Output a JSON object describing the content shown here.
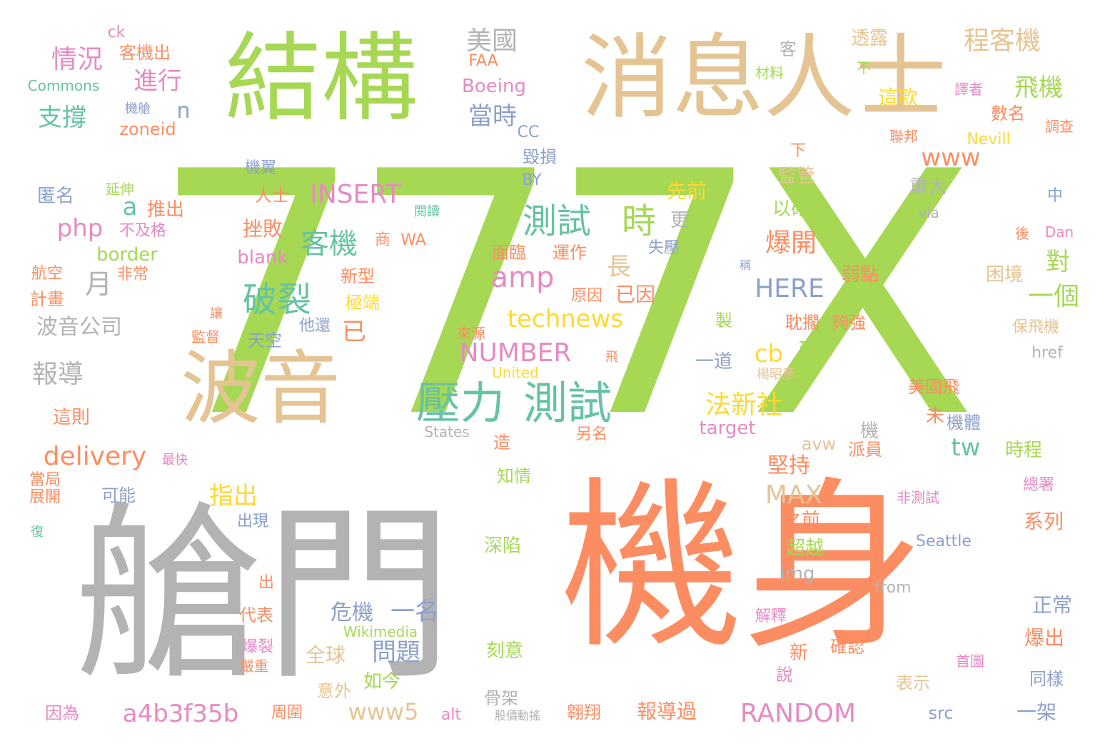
{
  "palette": {
    "green": "#a6d854",
    "tan": "#e5c494",
    "orange": "#fc8d62",
    "gray": "#b3b3b3",
    "pink": "#e78ac3",
    "blue": "#8da0cb",
    "teal": "#66c2a5",
    "yellow": "#ffd92f",
    "background": "#ffffff"
  },
  "words": [
    {
      "text": "777X",
      "color": "green"
    },
    {
      "text": "機身",
      "color": "orange"
    },
    {
      "text": "艙門",
      "color": "gray"
    },
    {
      "text": "消息人士",
      "color": "tan"
    },
    {
      "text": "結構",
      "color": "green"
    },
    {
      "text": "波音",
      "color": "tan"
    },
    {
      "text": "壓力",
      "color": "teal"
    },
    {
      "text": "測試",
      "color": "teal"
    },
    {
      "text": "測試",
      "color": "teal"
    },
    {
      "text": "時",
      "color": "green"
    },
    {
      "text": "破裂",
      "color": "teal"
    },
    {
      "text": "客機",
      "color": "teal"
    },
    {
      "text": "INSERT",
      "color": "pink"
    },
    {
      "text": "NUMBER",
      "color": "pink"
    },
    {
      "text": "RANDOM",
      "color": "pink"
    },
    {
      "text": "technews",
      "color": "yellow"
    },
    {
      "text": "amp",
      "color": "pink"
    },
    {
      "text": "delivery",
      "color": "orange"
    },
    {
      "text": "a4b3f35b",
      "color": "pink"
    },
    {
      "text": "www5",
      "color": "tan"
    },
    {
      "text": "MAX",
      "color": "tan"
    },
    {
      "text": "HERE",
      "color": "blue"
    },
    {
      "text": "法新社",
      "color": "yellow"
    },
    {
      "text": "爆開",
      "color": "orange"
    },
    {
      "text": "飛機",
      "color": "green"
    },
    {
      "text": "程客機",
      "color": "tan"
    },
    {
      "text": "www",
      "color": "orange"
    },
    {
      "text": "美國",
      "color": "gray"
    },
    {
      "text": "當時",
      "color": "blue"
    },
    {
      "text": "情況",
      "color": "pink"
    },
    {
      "text": "進行",
      "color": "pink"
    },
    {
      "text": "支撐",
      "color": "teal"
    },
    {
      "text": "php",
      "color": "pink"
    },
    {
      "text": "月",
      "color": "gray"
    },
    {
      "text": "a",
      "color": "teal"
    },
    {
      "text": "n",
      "color": "blue"
    },
    {
      "text": "一個",
      "color": "green"
    },
    {
      "text": "對",
      "color": "green"
    },
    {
      "text": "長",
      "color": "tan"
    },
    {
      "text": "已",
      "color": "orange"
    },
    {
      "text": "cb",
      "color": "yellow"
    },
    {
      "text": "tw",
      "color": "teal"
    },
    {
      "text": "指出",
      "color": "yellow"
    },
    {
      "text": "問題",
      "color": "blue"
    },
    {
      "text": "危機",
      "color": "blue"
    },
    {
      "text": "一名",
      "color": "blue"
    },
    {
      "text": "報導",
      "color": "gray"
    },
    {
      "text": "波音公司",
      "color": "gray"
    },
    {
      "text": "客機出",
      "color": "orange"
    },
    {
      "text": "ck",
      "color": "pink"
    },
    {
      "text": "Commons",
      "color": "teal"
    },
    {
      "text": "機艙",
      "color": "blue"
    },
    {
      "text": "zoneid",
      "color": "orange"
    },
    {
      "text": "FAA",
      "color": "orange"
    },
    {
      "text": "Boeing",
      "color": "pink"
    },
    {
      "text": "CC",
      "color": "blue"
    },
    {
      "text": "BY",
      "color": "blue"
    },
    {
      "text": "毀損",
      "color": "blue"
    },
    {
      "text": "機翼",
      "color": "blue"
    },
    {
      "text": "延伸",
      "color": "green"
    },
    {
      "text": "匿名",
      "color": "blue"
    },
    {
      "text": "推出",
      "color": "orange"
    },
    {
      "text": "人士",
      "color": "orange"
    },
    {
      "text": "閱讀",
      "color": "teal"
    },
    {
      "text": "不及格",
      "color": "pink"
    },
    {
      "text": "挫敗",
      "color": "orange"
    },
    {
      "text": "border",
      "color": "green"
    },
    {
      "text": "blank",
      "color": "pink"
    },
    {
      "text": "商",
      "color": "orange"
    },
    {
      "text": "WA",
      "color": "orange"
    },
    {
      "text": "面臨",
      "color": "orange"
    },
    {
      "text": "運作",
      "color": "orange"
    },
    {
      "text": "先前",
      "color": "yellow"
    },
    {
      "text": "更",
      "color": "gray"
    },
    {
      "text": "失壓",
      "color": "blue"
    },
    {
      "text": "航空",
      "color": "orange"
    },
    {
      "text": "非常",
      "color": "orange"
    },
    {
      "text": "計畫",
      "color": "orange"
    },
    {
      "text": "新型",
      "color": "orange"
    },
    {
      "text": "極端",
      "color": "yellow"
    },
    {
      "text": "原因",
      "color": "orange"
    },
    {
      "text": "已因",
      "color": "orange"
    },
    {
      "text": "天空",
      "color": "blue"
    },
    {
      "text": "他還",
      "color": "blue"
    },
    {
      "text": "讓",
      "color": "orange"
    },
    {
      "text": "監督",
      "color": "orange"
    },
    {
      "text": "來源",
      "color": "orange"
    },
    {
      "text": "United",
      "color": "yellow"
    },
    {
      "text": "States",
      "color": "gray"
    },
    {
      "text": "這則",
      "color": "orange"
    },
    {
      "text": "當局",
      "color": "orange"
    },
    {
      "text": "最快",
      "color": "pink"
    },
    {
      "text": "展開",
      "color": "orange"
    },
    {
      "text": "可能",
      "color": "blue"
    },
    {
      "text": "出現",
      "color": "blue"
    },
    {
      "text": "復",
      "color": "teal"
    },
    {
      "text": "出",
      "color": "orange"
    },
    {
      "text": "代表",
      "color": "orange"
    },
    {
      "text": "爆裂",
      "color": "pink"
    },
    {
      "text": "嚴重",
      "color": "orange"
    },
    {
      "text": "Wikimedia",
      "color": "green"
    },
    {
      "text": "全球",
      "color": "tan"
    },
    {
      "text": "如今",
      "color": "green"
    },
    {
      "text": "意外",
      "color": "tan"
    },
    {
      "text": "因為",
      "color": "pink"
    },
    {
      "text": "周圍",
      "color": "orange"
    },
    {
      "text": "alt",
      "color": "pink"
    },
    {
      "text": "骨架",
      "color": "gray"
    },
    {
      "text": "股價動搖",
      "color": "gray"
    },
    {
      "text": "翱翔",
      "color": "orange"
    },
    {
      "text": "報導過",
      "color": "orange"
    },
    {
      "text": "刻意",
      "color": "green"
    },
    {
      "text": "深陷",
      "color": "green"
    },
    {
      "text": "知情",
      "color": "green"
    },
    {
      "text": "造",
      "color": "orange"
    },
    {
      "text": "另名",
      "color": "orange"
    },
    {
      "text": "target",
      "color": "pink"
    },
    {
      "text": "堅持",
      "color": "orange"
    },
    {
      "text": "之前",
      "color": "orange"
    },
    {
      "text": "超越",
      "color": "green"
    },
    {
      "text": "img",
      "color": "gray"
    },
    {
      "text": "解釋",
      "color": "pink"
    },
    {
      "text": "新",
      "color": "orange"
    },
    {
      "text": "說",
      "color": "pink"
    },
    {
      "text": "確認",
      "color": "orange"
    },
    {
      "text": "avw",
      "color": "tan"
    },
    {
      "text": "機",
      "color": "gray"
    },
    {
      "text": "派員",
      "color": "orange"
    },
    {
      "text": "機體",
      "color": "blue"
    },
    {
      "text": "未",
      "color": "orange"
    },
    {
      "text": "時程",
      "color": "green"
    },
    {
      "text": "系列",
      "color": "orange"
    },
    {
      "text": "正常",
      "color": "blue"
    },
    {
      "text": "爆出",
      "color": "orange"
    },
    {
      "text": "同樣",
      "color": "blue"
    },
    {
      "text": "首圖",
      "color": "pink"
    },
    {
      "text": "表示",
      "color": "tan"
    },
    {
      "text": "src",
      "color": "blue"
    },
    {
      "text": "一架",
      "color": "blue"
    },
    {
      "text": "非測試",
      "color": "pink"
    },
    {
      "text": "總署",
      "color": "pink"
    },
    {
      "text": "Seattle",
      "color": "blue"
    },
    {
      "text": "from",
      "color": "gray"
    },
    {
      "text": "美國飛",
      "color": "orange"
    },
    {
      "text": "楊昭彥",
      "color": "tan"
    },
    {
      "text": "現在",
      "color": "green"
    },
    {
      "text": "一道",
      "color": "blue"
    },
    {
      "text": "飛",
      "color": "orange"
    },
    {
      "text": "製",
      "color": "green"
    },
    {
      "text": "耽擱",
      "color": "orange"
    },
    {
      "text": "夠強",
      "color": "orange"
    },
    {
      "text": "弱點",
      "color": "orange"
    },
    {
      "text": "困境",
      "color": "tan"
    },
    {
      "text": "保飛機",
      "color": "tan"
    },
    {
      "text": "href",
      "color": "gray"
    },
    {
      "text": "稱",
      "color": "blue"
    },
    {
      "text": "以確",
      "color": "green"
    },
    {
      "text": "重大",
      "color": "gray"
    },
    {
      "text": "監管",
      "color": "tan"
    },
    {
      "text": "下",
      "color": "orange"
    },
    {
      "text": "中",
      "color": "blue"
    },
    {
      "text": "via",
      "color": "gray"
    },
    {
      "text": "後",
      "color": "orange"
    },
    {
      "text": "Dan",
      "color": "pink"
    },
    {
      "text": "聯邦",
      "color": "orange"
    },
    {
      "text": "Nevill",
      "color": "yellow"
    },
    {
      "text": "調查",
      "color": "orange"
    },
    {
      "text": "數名",
      "color": "orange"
    },
    {
      "text": "譯者",
      "color": "pink"
    },
    {
      "text": "這款",
      "color": "yellow"
    },
    {
      "text": "材料",
      "color": "green"
    },
    {
      "text": "不",
      "color": "green"
    },
    {
      "text": "透露",
      "color": "tan"
    },
    {
      "text": "客",
      "color": "gray"
    }
  ]
}
